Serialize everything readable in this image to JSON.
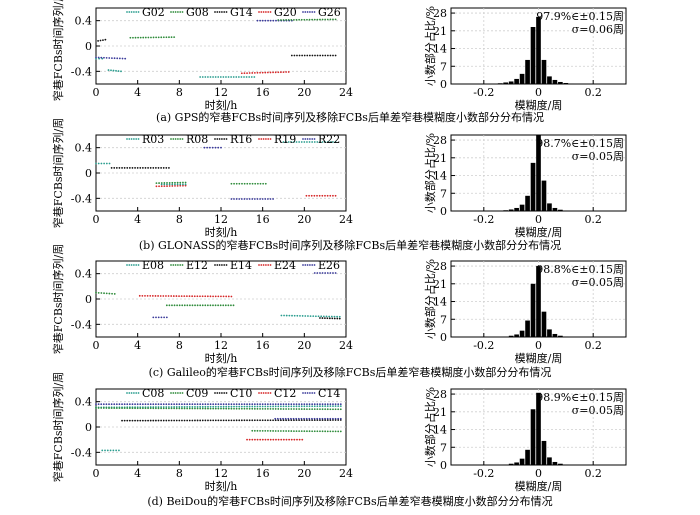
{
  "figure": {
    "panels": [
      {
        "id": "a",
        "caption": "(a) GPS的窄巷FCBs时间序列及移除FCBs后单差窄巷模糊度小数部分分布情况",
        "stat_line1": "97.9%∈±0.15周",
        "stat_line2": "σ=0.06周",
        "legend": [
          {
            "name": "G02",
            "color": "#2a9d8f"
          },
          {
            "name": "G08",
            "color": "#2e8b3a"
          },
          {
            "name": "G14",
            "color": "#111111"
          },
          {
            "name": "G20",
            "color": "#d62728"
          },
          {
            "name": "G26",
            "color": "#3a3a9a"
          }
        ]
      },
      {
        "id": "b",
        "caption": "(b) GLONASS的窄巷FCBs时间序列及移除FCBs后单差窄巷模糊度小数部分分布情况",
        "stat_line1": "98.7%∈±0.15周",
        "stat_line2": "σ=0.05周",
        "legend": [
          {
            "name": "R03",
            "color": "#2a9d8f"
          },
          {
            "name": "R08",
            "color": "#2e8b3a"
          },
          {
            "name": "R16",
            "color": "#111111"
          },
          {
            "name": "R19",
            "color": "#d62728"
          },
          {
            "name": "R22",
            "color": "#3a3a9a"
          }
        ]
      },
      {
        "id": "c",
        "caption": "(c) Galileo的窄巷FCBs时间序列及移除FCBs后单差窄巷模糊度小数部分分布情况",
        "stat_line1": "98.8%∈±0.15周",
        "stat_line2": "σ=0.05周",
        "legend": [
          {
            "name": "E08",
            "color": "#2a9d8f"
          },
          {
            "name": "E12",
            "color": "#2e8b3a"
          },
          {
            "name": "E14",
            "color": "#111111"
          },
          {
            "name": "E24",
            "color": "#d62728"
          },
          {
            "name": "E26",
            "color": "#3a3a9a"
          }
        ]
      },
      {
        "id": "d",
        "caption": "(d) BeiDou的窄巷FCBs时间序列及移除FCBs后单差窄巷模糊度小数部分分布情况",
        "stat_line1": "98.9%∈±0.15周",
        "stat_line2": "σ=0.05周",
        "legend": [
          {
            "name": "C08",
            "color": "#2a9d8f"
          },
          {
            "name": "C09",
            "color": "#2e8b3a"
          },
          {
            "name": "C10",
            "color": "#111111"
          },
          {
            "name": "C12",
            "color": "#d62728"
          },
          {
            "name": "C14",
            "color": "#3a3a9a"
          }
        ]
      }
    ]
  },
  "chart_data": [
    {
      "type": "scatter",
      "panel": "a",
      "xlabel": "时刻/h",
      "ylabel": "窄巷FCBs时间序列/周",
      "xlim": [
        0,
        24
      ],
      "ylim": [
        -0.6,
        0.6
      ],
      "xticks": [
        0,
        4,
        8,
        12,
        16,
        20,
        24
      ],
      "yticks": [
        -0.4,
        0,
        0.4
      ],
      "ytick_labels": [
        "-0.4",
        "0",
        "0.4"
      ],
      "segments": [
        {
          "sat": "G02",
          "x0": 0.0,
          "x1": 0.6,
          "y0": -0.2,
          "y1": -0.2
        },
        {
          "sat": "G02",
          "x0": 1.2,
          "x1": 2.4,
          "y0": -0.38,
          "y1": -0.4
        },
        {
          "sat": "G14",
          "x0": 0.2,
          "x1": 0.9,
          "y0": 0.08,
          "y1": 0.1
        },
        {
          "sat": "G26",
          "x0": 0.0,
          "x1": 2.8,
          "y0": -0.18,
          "y1": -0.2
        },
        {
          "sat": "G08",
          "x0": 3.3,
          "x1": 7.5,
          "y0": 0.13,
          "y1": 0.14
        },
        {
          "sat": "G02",
          "x0": 10.0,
          "x1": 15.2,
          "y0": -0.49,
          "y1": -0.49
        },
        {
          "sat": "G20",
          "x0": 14.0,
          "x1": 18.5,
          "y0": -0.43,
          "y1": -0.41
        },
        {
          "sat": "G26",
          "x0": 15.5,
          "x1": 18.8,
          "y0": 0.4,
          "y1": 0.4
        },
        {
          "sat": "G14",
          "x0": 18.8,
          "x1": 23.0,
          "y0": -0.15,
          "y1": -0.15
        },
        {
          "sat": "G08",
          "x0": 17.5,
          "x1": 23.0,
          "y0": 0.41,
          "y1": 0.42
        }
      ]
    },
    {
      "type": "bar",
      "panel": "a",
      "xlabel": "模糊度/周",
      "ylabel": "小数部分占比/%",
      "xlim": [
        -0.32,
        0.32
      ],
      "ylim": [
        0,
        30
      ],
      "xticks": [
        -0.2,
        0,
        0.2
      ],
      "xtick_labels": [
        "-0.2",
        "0",
        "0.2"
      ],
      "yticks": [
        0,
        7,
        14,
        21,
        28
      ],
      "bin_width": 0.02,
      "centers": [
        -0.14,
        -0.12,
        -0.1,
        -0.08,
        -0.06,
        -0.04,
        -0.02,
        0.0,
        0.02,
        0.04,
        0.06,
        0.08,
        0.1,
        0.12
      ],
      "values": [
        0.3,
        0.6,
        1.0,
        2.0,
        4.0,
        9.5,
        22.5,
        26.5,
        9.5,
        3.0,
        1.6,
        0.8,
        0.4,
        0.2
      ]
    },
    {
      "type": "scatter",
      "panel": "b",
      "xlabel": "时刻/h",
      "ylabel": "窄巷FCBs时间序列/周",
      "xlim": [
        0,
        24
      ],
      "ylim": [
        -0.6,
        0.6
      ],
      "xticks": [
        0,
        4,
        8,
        12,
        16,
        20,
        24
      ],
      "yticks": [
        -0.4,
        0,
        0.4
      ],
      "ytick_labels": [
        "-0.4",
        "0",
        "0.4"
      ],
      "segments": [
        {
          "sat": "R03",
          "x0": 0.0,
          "x1": 1.3,
          "y0": 0.15,
          "y1": 0.15
        },
        {
          "sat": "R16",
          "x0": 1.5,
          "x1": 7.0,
          "y0": 0.08,
          "y1": 0.08
        },
        {
          "sat": "R08",
          "x0": 5.8,
          "x1": 8.6,
          "y0": -0.16,
          "y1": -0.15
        },
        {
          "sat": "R19",
          "x0": 5.8,
          "x1": 8.6,
          "y0": -0.21,
          "y1": -0.2
        },
        {
          "sat": "R03",
          "x0": 6.3,
          "x1": 8.6,
          "y0": -0.18,
          "y1": -0.18
        },
        {
          "sat": "R22",
          "x0": 10.4,
          "x1": 12.0,
          "y0": 0.4,
          "y1": 0.4
        },
        {
          "sat": "R08",
          "x0": 13.0,
          "x1": 16.3,
          "y0": -0.17,
          "y1": -0.17
        },
        {
          "sat": "R22",
          "x0": 13.0,
          "x1": 17.0,
          "y0": -0.41,
          "y1": -0.41
        },
        {
          "sat": "R03",
          "x0": 18.0,
          "x1": 23.0,
          "y0": 0.49,
          "y1": 0.49
        },
        {
          "sat": "R19",
          "x0": 20.2,
          "x1": 23.0,
          "y0": -0.36,
          "y1": -0.36
        }
      ]
    },
    {
      "type": "bar",
      "panel": "b",
      "xlabel": "模糊度/周",
      "ylabel": "小数部分占比/%",
      "xlim": [
        -0.32,
        0.32
      ],
      "ylim": [
        0,
        30
      ],
      "xticks": [
        -0.2,
        0,
        0.2
      ],
      "xtick_labels": [
        "-0.2",
        "0",
        "0.2"
      ],
      "yticks": [
        0,
        7,
        14,
        21,
        28
      ],
      "bin_width": 0.02,
      "centers": [
        -0.12,
        -0.1,
        -0.08,
        -0.06,
        -0.04,
        -0.02,
        0.0,
        0.02,
        0.04,
        0.06,
        0.08,
        0.1
      ],
      "values": [
        0.3,
        0.6,
        1.2,
        2.5,
        6.0,
        19.0,
        30.0,
        12.0,
        3.0,
        1.2,
        0.5,
        0.2
      ]
    },
    {
      "type": "scatter",
      "panel": "c",
      "xlabel": "时刻/h",
      "ylabel": "窄巷FCBs时间序列/周",
      "xlim": [
        0,
        24
      ],
      "ylim": [
        -0.6,
        0.6
      ],
      "xticks": [
        0,
        4,
        8,
        12,
        16,
        20,
        24
      ],
      "yticks": [
        -0.4,
        0,
        0.4
      ],
      "ytick_labels": [
        "-0.4",
        "0",
        "0.4"
      ],
      "segments": [
        {
          "sat": "E12",
          "x0": 0.0,
          "x1": 1.8,
          "y0": 0.1,
          "y1": 0.08
        },
        {
          "sat": "E24",
          "x0": 4.2,
          "x1": 13.0,
          "y0": 0.05,
          "y1": 0.04
        },
        {
          "sat": "E12",
          "x0": 6.8,
          "x1": 13.2,
          "y0": -0.1,
          "y1": -0.1
        },
        {
          "sat": "E26",
          "x0": 5.5,
          "x1": 6.8,
          "y0": -0.29,
          "y1": -0.29
        },
        {
          "sat": "E08",
          "x0": 17.8,
          "x1": 23.4,
          "y0": -0.26,
          "y1": -0.28
        },
        {
          "sat": "E14",
          "x0": 21.5,
          "x1": 23.4,
          "y0": -0.3,
          "y1": -0.31
        },
        {
          "sat": "E26",
          "x0": 21.0,
          "x1": 23.0,
          "y0": 0.41,
          "y1": 0.41
        }
      ]
    },
    {
      "type": "bar",
      "panel": "c",
      "xlabel": "模糊度/周",
      "ylabel": "小数部分占比/%",
      "xlim": [
        -0.32,
        0.32
      ],
      "ylim": [
        0,
        30
      ],
      "xticks": [
        -0.2,
        0,
        0.2
      ],
      "xtick_labels": [
        "-0.2",
        "0",
        "0.2"
      ],
      "yticks": [
        0,
        7,
        14,
        21,
        28
      ],
      "bin_width": 0.02,
      "centers": [
        -0.12,
        -0.1,
        -0.08,
        -0.06,
        -0.04,
        -0.02,
        0.0,
        0.02,
        0.04,
        0.06,
        0.08,
        0.1
      ],
      "values": [
        0.2,
        0.5,
        1.0,
        2.5,
        6.5,
        21.0,
        28.0,
        10.0,
        3.0,
        1.2,
        0.5,
        0.2
      ]
    },
    {
      "type": "scatter",
      "panel": "d",
      "xlabel": "时刻/h",
      "ylabel": "窄巷FCBs时间序列/周",
      "xlim": [
        0,
        24
      ],
      "ylim": [
        -0.6,
        0.6
      ],
      "xticks": [
        0,
        4,
        8,
        12,
        16,
        20,
        24
      ],
      "yticks": [
        -0.4,
        0,
        0.4
      ],
      "ytick_labels": [
        "-0.4",
        "0",
        "0.4"
      ],
      "segments": [
        {
          "sat": "C08",
          "x0": 0.0,
          "x1": 23.5,
          "y0": 0.31,
          "y1": 0.33
        },
        {
          "sat": "C09",
          "x0": 0.0,
          "x1": 23.5,
          "y0": 0.3,
          "y1": 0.28
        },
        {
          "sat": "C10",
          "x0": 2.5,
          "x1": 23.5,
          "y0": 0.1,
          "y1": 0.11
        },
        {
          "sat": "C14",
          "x0": 0.0,
          "x1": 23.5,
          "y0": 0.36,
          "y1": 0.36
        },
        {
          "sat": "C08",
          "x0": 0.6,
          "x1": 2.2,
          "y0": -0.37,
          "y1": -0.37
        },
        {
          "sat": "C12",
          "x0": 14.5,
          "x1": 19.8,
          "y0": -0.2,
          "y1": -0.2
        },
        {
          "sat": "C09",
          "x0": 15.0,
          "x1": 23.5,
          "y0": -0.06,
          "y1": -0.07
        },
        {
          "sat": "C14",
          "x0": 17.2,
          "x1": 23.5,
          "y0": 0.13,
          "y1": 0.13
        }
      ]
    },
    {
      "type": "bar",
      "panel": "d",
      "xlabel": "模糊度/周",
      "ylabel": "小数部分占比/%",
      "xlim": [
        -0.32,
        0.32
      ],
      "ylim": [
        0,
        30
      ],
      "xticks": [
        -0.2,
        0,
        0.2
      ],
      "xtick_labels": [
        "-0.2",
        "0",
        "0.2"
      ],
      "yticks": [
        0,
        7,
        14,
        21,
        28
      ],
      "bin_width": 0.02,
      "centers": [
        -0.12,
        -0.1,
        -0.08,
        -0.06,
        -0.04,
        -0.02,
        0.0,
        0.02,
        0.04,
        0.06,
        0.08,
        0.1
      ],
      "values": [
        0.2,
        0.5,
        1.0,
        2.5,
        6.0,
        22.0,
        28.5,
        9.5,
        3.0,
        1.2,
        0.5,
        0.2
      ]
    }
  ]
}
